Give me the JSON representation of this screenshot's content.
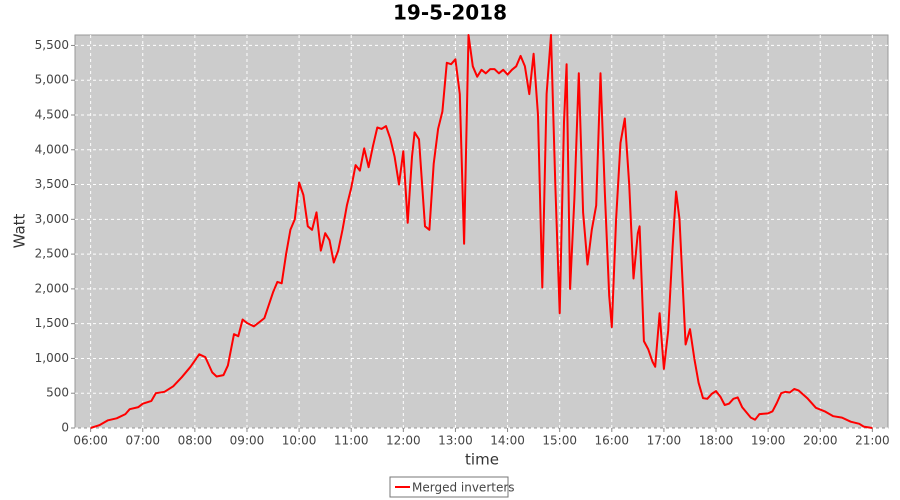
{
  "chart_data": {
    "type": "line",
    "title": "19-5-2018",
    "x_label": "time",
    "y_label": "Watt",
    "x": [
      "06:00",
      "06:10",
      "06:20",
      "06:30",
      "06:40",
      "06:45",
      "06:55",
      "07:00",
      "07:10",
      "07:15",
      "07:25",
      "07:35",
      "07:45",
      "07:55",
      "08:05",
      "08:12",
      "08:20",
      "08:25",
      "08:33",
      "08:38",
      "08:45",
      "08:50",
      "08:55",
      "09:00",
      "09:08",
      "09:15",
      "09:20",
      "09:30",
      "09:35",
      "09:40",
      "09:45",
      "09:50",
      "09:55",
      "10:00",
      "10:05",
      "10:10",
      "10:15",
      "10:20",
      "10:25",
      "10:30",
      "10:35",
      "10:40",
      "10:45",
      "10:50",
      "10:55",
      "11:00",
      "11:05",
      "11:10",
      "11:15",
      "11:20",
      "11:25",
      "11:30",
      "11:35",
      "11:40",
      "11:45",
      "11:50",
      "11:55",
      "12:00",
      "12:05",
      "12:10",
      "12:13",
      "12:18",
      "12:25",
      "12:30",
      "12:35",
      "12:40",
      "12:45",
      "12:50",
      "12:55",
      "13:00",
      "13:05",
      "13:10",
      "13:15",
      "13:20",
      "13:25",
      "13:30",
      "13:35",
      "13:40",
      "13:45",
      "13:50",
      "13:55",
      "14:00",
      "14:05",
      "14:10",
      "14:15",
      "14:20",
      "14:25",
      "14:30",
      "14:35",
      "14:40",
      "14:45",
      "14:50",
      "14:55",
      "15:00",
      "15:05",
      "15:08",
      "15:12",
      "15:17",
      "15:22",
      "15:27",
      "15:32",
      "15:37",
      "15:42",
      "15:47",
      "15:52",
      "15:57",
      "16:00",
      "16:05",
      "16:10",
      "16:15",
      "16:20",
      "16:25",
      "16:30",
      "16:32",
      "16:37",
      "16:42",
      "16:47",
      "16:50",
      "16:55",
      "17:00",
      "17:05",
      "17:10",
      "17:14",
      "17:18",
      "17:25",
      "17:30",
      "17:35",
      "17:40",
      "17:45",
      "17:50",
      "17:55",
      "18:00",
      "18:05",
      "18:10",
      "18:15",
      "18:20",
      "18:25",
      "18:30",
      "18:40",
      "18:45",
      "18:50",
      "19:00",
      "19:05",
      "19:10",
      "19:15",
      "19:20",
      "19:25",
      "19:30",
      "19:35",
      "19:45",
      "19:55",
      "20:05",
      "20:15",
      "20:25",
      "20:35",
      "20:45",
      "20:50",
      "21:00"
    ],
    "series": [
      {
        "name": "Merged inverters",
        "color": "#ff0000",
        "values": [
          0,
          40,
          110,
          140,
          200,
          270,
          300,
          350,
          390,
          500,
          520,
          600,
          730,
          880,
          1060,
          1020,
          800,
          740,
          760,
          900,
          1350,
          1320,
          1560,
          1510,
          1460,
          1530,
          1580,
          1950,
          2100,
          2080,
          2500,
          2850,
          3000,
          3530,
          3350,
          2900,
          2850,
          3100,
          2550,
          2800,
          2700,
          2380,
          2550,
          2850,
          3200,
          3450,
          3780,
          3700,
          4020,
          3750,
          4050,
          4320,
          4300,
          4340,
          4160,
          3900,
          3500,
          3980,
          2950,
          3900,
          4250,
          4150,
          2900,
          2850,
          3800,
          4300,
          4550,
          5250,
          5230,
          5300,
          4800,
          2650,
          5650,
          5200,
          5050,
          5150,
          5100,
          5160,
          5160,
          5100,
          5150,
          5080,
          5150,
          5200,
          5350,
          5200,
          4800,
          5380,
          4500,
          2020,
          4800,
          5650,
          3500,
          1650,
          4400,
          5230,
          2000,
          3300,
          5100,
          3100,
          2350,
          2850,
          3200,
          5100,
          3400,
          1900,
          1450,
          3000,
          4100,
          4450,
          3500,
          2150,
          2800,
          2900,
          1250,
          1130,
          950,
          880,
          1650,
          850,
          1400,
          2600,
          3400,
          3000,
          1200,
          1420,
          1000,
          650,
          430,
          420,
          490,
          530,
          450,
          330,
          350,
          420,
          440,
          300,
          150,
          120,
          200,
          210,
          240,
          360,
          500,
          520,
          510,
          560,
          540,
          430,
          290,
          240,
          170,
          150,
          90,
          60,
          20,
          0
        ]
      }
    ],
    "xlim": [
      "05:42",
      "21:18"
    ],
    "xticks": [
      "06:00",
      "07:00",
      "08:00",
      "09:00",
      "10:00",
      "11:00",
      "12:00",
      "13:00",
      "14:00",
      "15:00",
      "16:00",
      "17:00",
      "18:00",
      "19:00",
      "20:00",
      "21:00"
    ],
    "ylim": [
      0,
      5650
    ],
    "yticks": [
      0,
      500,
      {
        "value": 1000,
        "label": "1,000"
      },
      {
        "value": 1500,
        "label": "1,500"
      },
      {
        "value": 2000,
        "label": "2,000"
      },
      {
        "value": 2500,
        "label": "2,500"
      },
      {
        "value": 3000,
        "label": "3,000"
      },
      {
        "value": 3500,
        "label": "3,500"
      },
      {
        "value": 4000,
        "label": "4,000"
      },
      {
        "value": 4500,
        "label": "4,500"
      },
      {
        "value": 5000,
        "label": "5,000"
      },
      {
        "value": 5500,
        "label": "5,500"
      }
    ],
    "grid": true,
    "legend": "bottom"
  }
}
